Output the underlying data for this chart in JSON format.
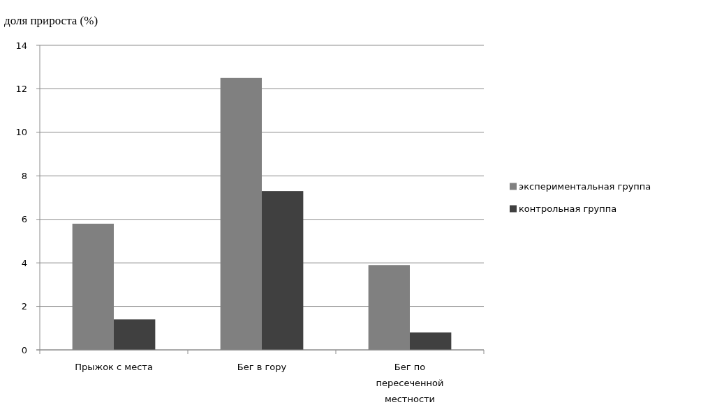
{
  "chart_data": {
    "type": "bar",
    "ylabel": "доля прироста (%)",
    "categories": [
      "Прыжок с места",
      "Бег в гору",
      "Бег по пересеченной местности"
    ],
    "series": [
      {
        "name": "экспериментальная группа",
        "color": "#808080",
        "values": [
          5.8,
          12.5,
          3.9
        ]
      },
      {
        "name": "контрольная группа",
        "color": "#404040",
        "values": [
          1.4,
          7.3,
          0.8
        ]
      }
    ],
    "ylim": [
      0,
      14
    ],
    "yticks": [
      0,
      2,
      4,
      6,
      8,
      10,
      12,
      14
    ],
    "grid": "y",
    "legend": "right"
  }
}
